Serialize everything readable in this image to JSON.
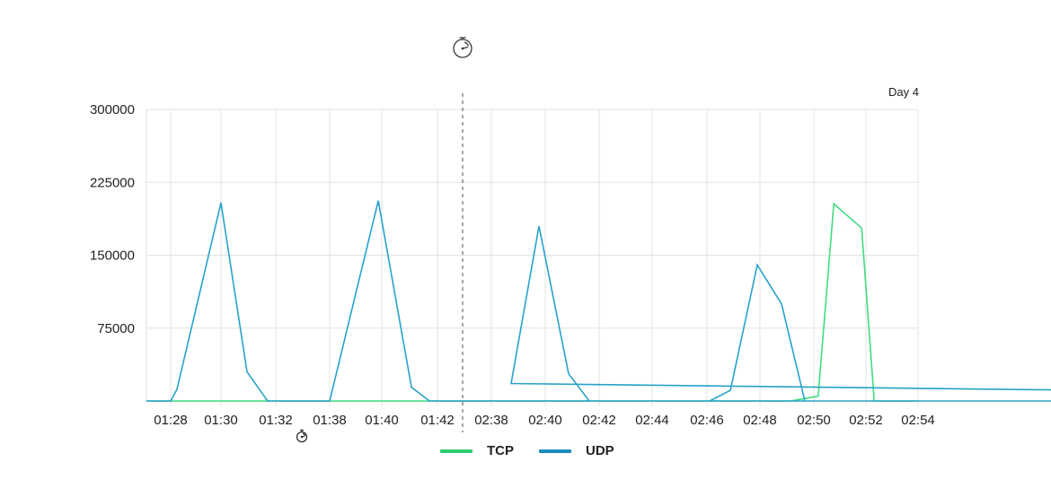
{
  "chart_data": {
    "type": "line",
    "title": "",
    "xlabel": "",
    "ylabel": "",
    "ylim": [
      0,
      300000
    ],
    "y_ticks": [
      "300000",
      "225000",
      "150000",
      "75000"
    ],
    "y_tick_values": [
      300000,
      225000,
      150000,
      75000
    ],
    "x_ticks": [
      "01:28",
      "01:30",
      "01:32",
      "01:38",
      "01:40",
      "01:42",
      "02:38",
      "02:40",
      "02:42",
      "02:44",
      "02:46",
      "02:48",
      "02:50",
      "02:52",
      "02:54"
    ],
    "x_range": [
      "01:27:02",
      "02:54:00"
    ],
    "axis_break_between": [
      "01:42",
      "02:38"
    ],
    "grid": true,
    "legend_position": "bottom",
    "annotation": "Day 4",
    "icons": [
      "stopwatch-icon",
      "stopwatch-icon"
    ],
    "series": [
      {
        "name": "TCP",
        "color": "#3fdc7e",
        "legend_color": "#2ecc71",
        "x": [
          "01:27:02",
          "02:49:08",
          "02:50:10",
          "02:50:46",
          "02:51:50",
          "02:52:19",
          "02:54:00"
        ],
        "values": [
          0,
          0,
          5000,
          203000,
          178000,
          0,
          0
        ]
      },
      {
        "name": "UDP",
        "color": "#27a2c8",
        "legend_color": "#1b8bbf",
        "x": [
          "01:27:02",
          "01:28:00",
          "01:28:15",
          "01:30:00",
          "01:30:57",
          "01:31:42",
          "01:38:00",
          "01:39:52",
          "01:41:04",
          "01:41:43",
          "02:38:00",
          "02:38:44",
          "02:39:46",
          "02:40:52",
          "02:41:38",
          "02:46:06",
          "02:46:53",
          "02:47:54",
          "02:48:48",
          "02:49:40",
          "02:54:00"
        ],
        "values": [
          0,
          0,
          12000,
          204000,
          30000,
          0,
          0,
          206000,
          14000,
          0,
          0,
          18000,
          180000,
          28000,
          0,
          0,
          11000,
          140000,
          100000,
          0,
          0
        ]
      }
    ]
  }
}
